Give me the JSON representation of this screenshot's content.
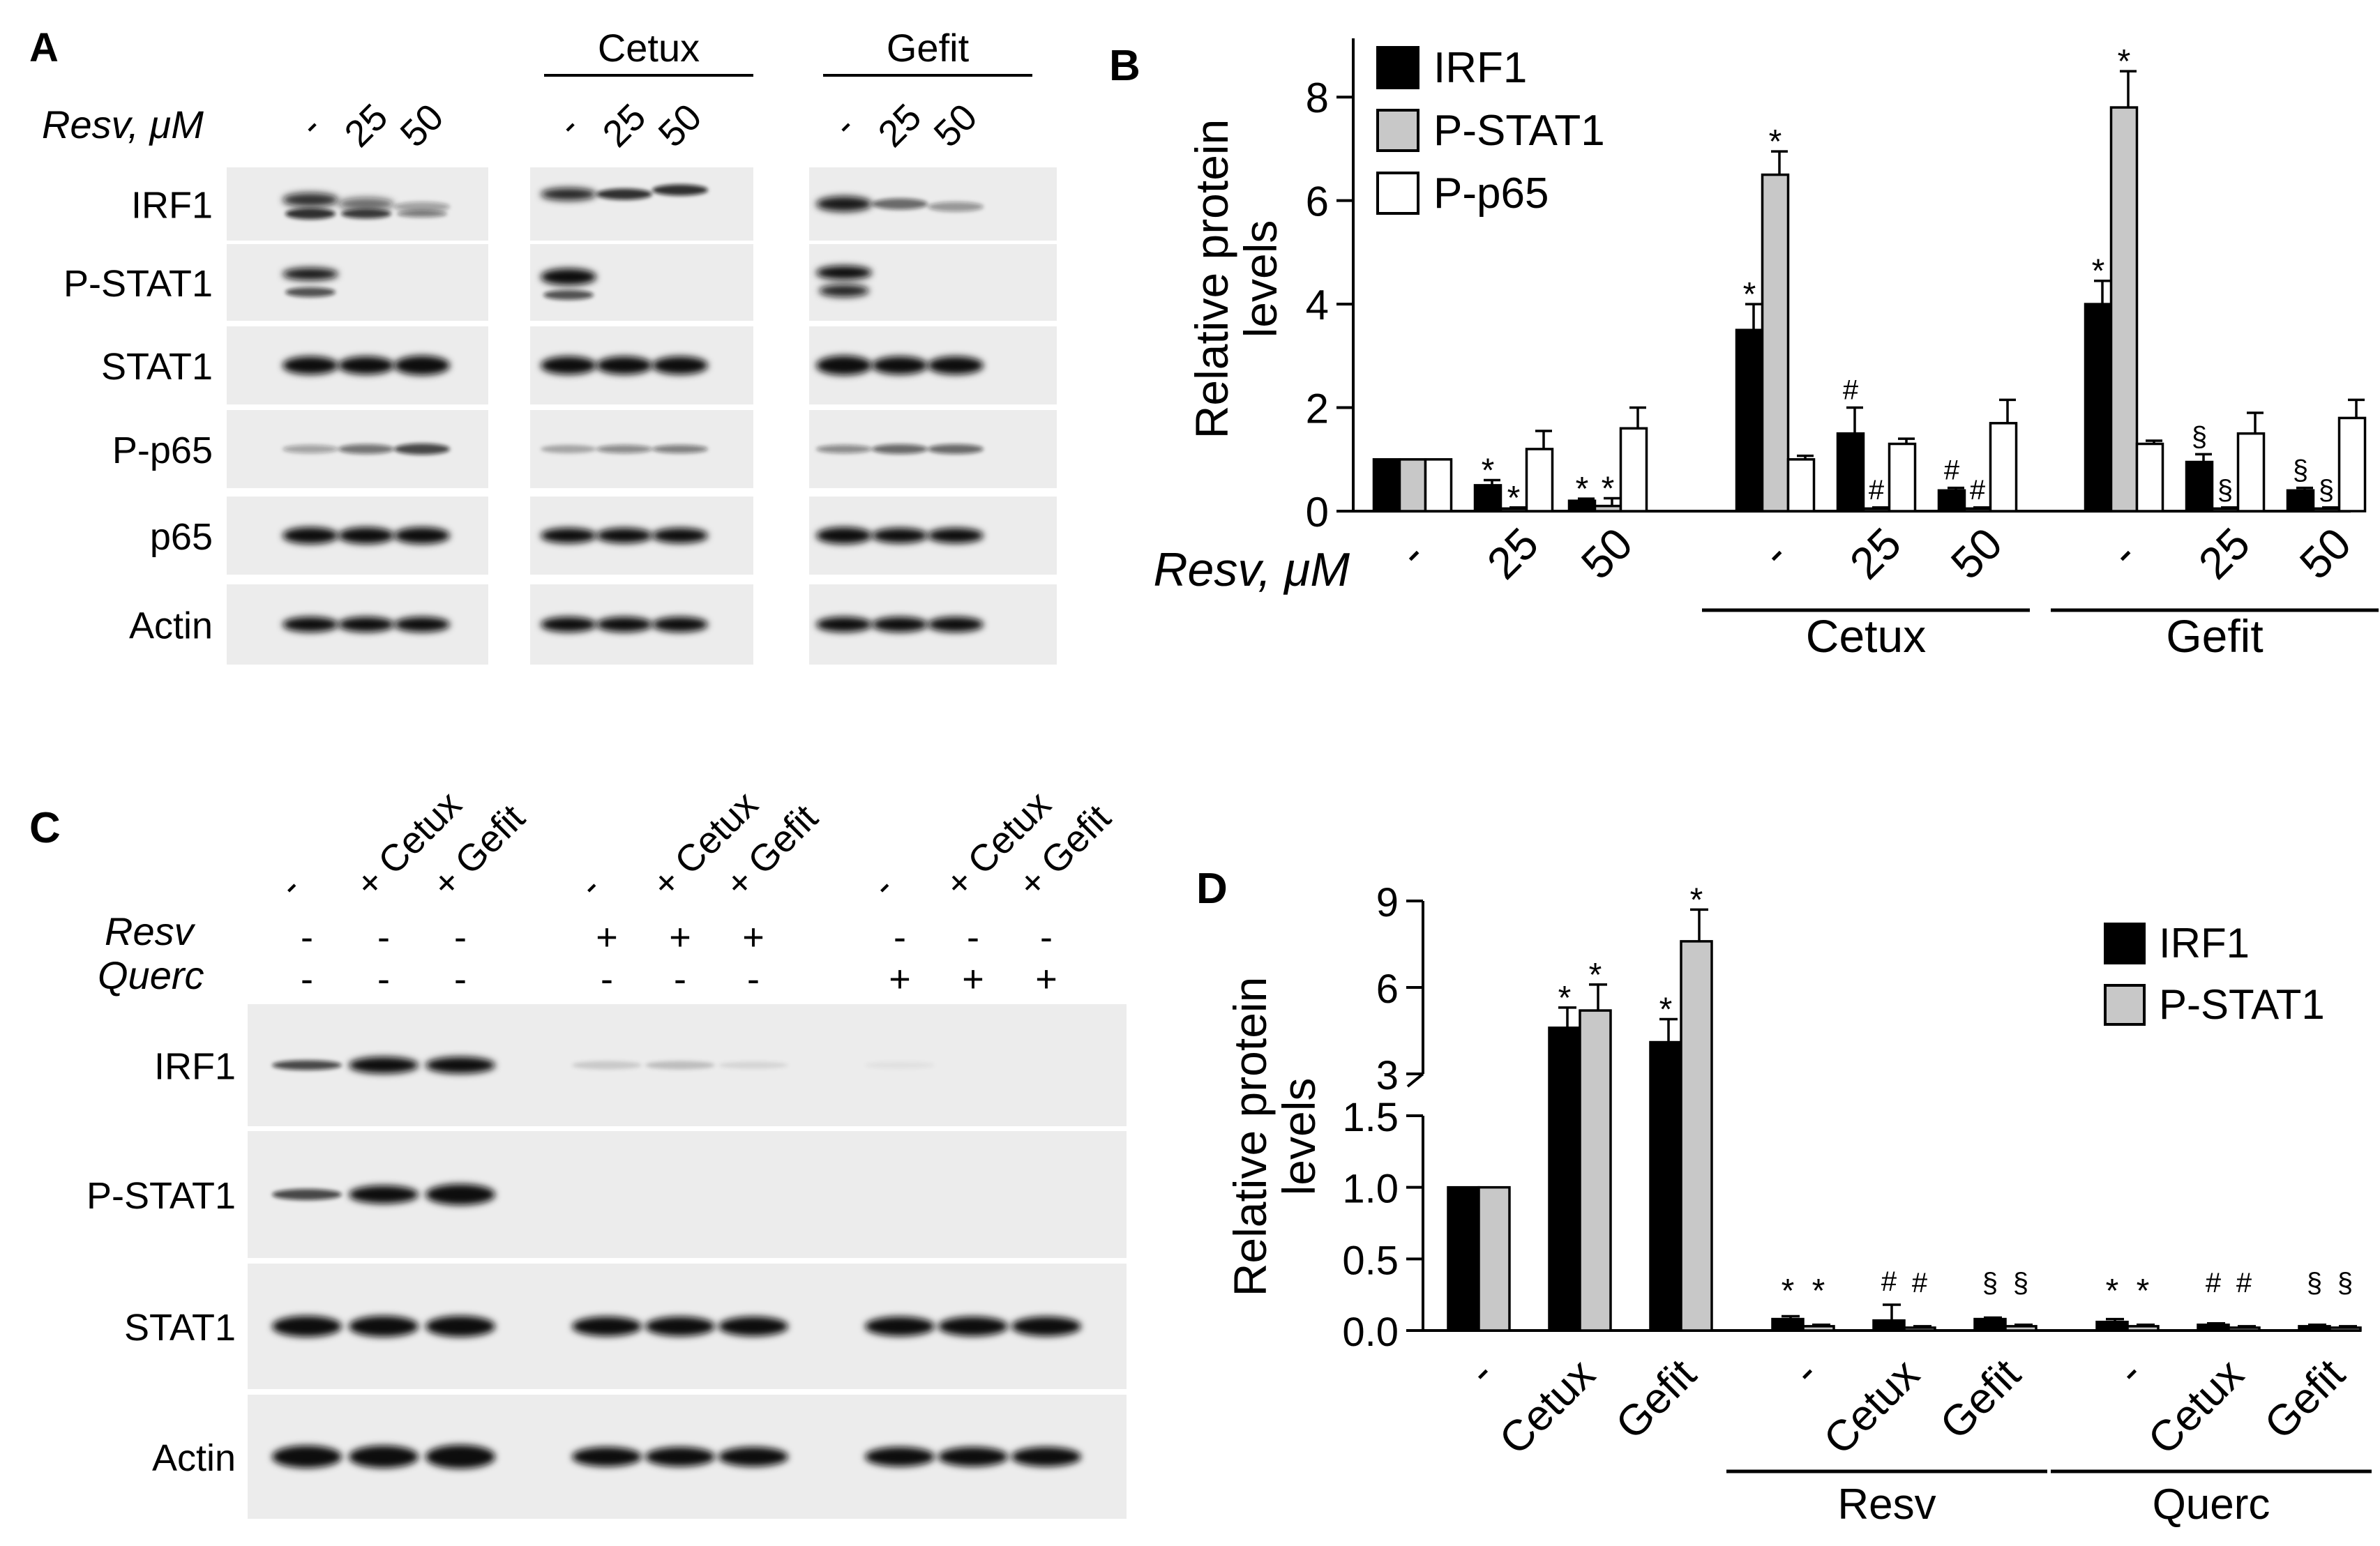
{
  "panels": {
    "a": {
      "letter": "A",
      "resv_label": "Resv, μM",
      "lane_labels": [
        "-",
        "25",
        "50",
        "-",
        "25",
        "50",
        "-",
        "25",
        "50"
      ],
      "group_labels": [
        "Cetux",
        "Gefit"
      ],
      "row_labels": [
        "IRF1",
        "P-STAT1",
        "STAT1",
        "P-p65",
        "p65",
        "Actin"
      ]
    },
    "b": {
      "letter": "B"
    },
    "c": {
      "letter": "C",
      "top_labels": [
        "-",
        "+ Cetux",
        "+ Gefit",
        "-",
        "+ Cetux",
        "+ Gefit",
        "-",
        "+ Cetux",
        "+ Gefit"
      ],
      "resv_label": "Resv",
      "resv_signs": [
        "-",
        "-",
        "-",
        "+",
        "+",
        "+",
        "-",
        "-",
        "-"
      ],
      "querc_label": "Querc",
      "querc_signs": [
        "-",
        "-",
        "-",
        "-",
        "-",
        "-",
        "+",
        "+",
        "+"
      ],
      "row_labels": [
        "IRF1",
        "P-STAT1",
        "STAT1",
        "Actin"
      ]
    },
    "d": {
      "letter": "D"
    }
  },
  "chart_data": [
    {
      "type": "bar",
      "panel": "B",
      "ylabel": "Relative protein levels",
      "xlabel": "Resv, μM",
      "categories": [
        "-",
        "25",
        "50",
        "-",
        "25",
        "50",
        "-",
        "25",
        "50"
      ],
      "groups": [
        {
          "label": "Cetux",
          "from": 3,
          "to": 5
        },
        {
          "label": "Gefit",
          "from": 6,
          "to": 8
        }
      ],
      "ylim": [
        0,
        9
      ],
      "yticks": [
        0,
        2,
        4,
        6,
        8
      ],
      "legend_position": "top-left",
      "series": [
        {
          "name": "IRF1",
          "color": "#000000",
          "values": [
            1.0,
            0.5,
            0.2,
            3.5,
            1.5,
            0.4,
            4.0,
            0.95,
            0.4
          ],
          "errors": [
            0,
            0.1,
            0.04,
            0.5,
            0.5,
            0.05,
            0.45,
            0.15,
            0.05
          ],
          "marks": [
            "",
            "*",
            "*",
            "*",
            "#",
            "#",
            "*",
            "§",
            "§"
          ]
        },
        {
          "name": "P-STAT1",
          "color": "#c8c8c8",
          "values": [
            1.0,
            0.05,
            0.1,
            6.5,
            0.05,
            0.05,
            7.8,
            0.05,
            0.05
          ],
          "errors": [
            0,
            0.02,
            0.15,
            0.45,
            0.02,
            0.02,
            0.7,
            0.02,
            0.02
          ],
          "marks": [
            "",
            "*",
            "*",
            "*",
            "#",
            "#",
            "*",
            "§",
            "§"
          ]
        },
        {
          "name": "P-p65",
          "color": "#ffffff",
          "values": [
            1.0,
            1.2,
            1.6,
            1.0,
            1.3,
            1.7,
            1.3,
            1.5,
            1.8
          ],
          "errors": [
            0,
            0.35,
            0.4,
            0.07,
            0.1,
            0.45,
            0.06,
            0.4,
            0.35
          ],
          "marks": [
            "",
            "",
            "",
            "",
            "",
            "",
            "",
            "",
            ""
          ]
        }
      ]
    },
    {
      "type": "bar",
      "panel": "D",
      "ylabel": "Relative protein levels",
      "categories": [
        "-",
        "Cetux",
        "Gefit",
        "-",
        "Cetux",
        "Gefit",
        "-",
        "Cetux",
        "Gefit"
      ],
      "groups": [
        {
          "label": "Resv",
          "from": 3,
          "to": 5
        },
        {
          "label": "Querc",
          "from": 6,
          "to": 8
        }
      ],
      "axis_break": true,
      "ylim_lower": [
        0,
        1.5
      ],
      "ylim_upper": [
        3,
        9
      ],
      "yticks_lower": [
        "0.0",
        "0.5",
        "1.0",
        "1.5"
      ],
      "yticks_upper": [
        "3",
        "6",
        "9"
      ],
      "legend_position": "top-right",
      "series": [
        {
          "name": "IRF1",
          "color": "#000000",
          "values": [
            1.0,
            4.6,
            4.1,
            0.08,
            0.07,
            0.08,
            0.06,
            0.04,
            0.03
          ],
          "errors": [
            0,
            0.7,
            0.8,
            0.02,
            0.11,
            0.01,
            0.02,
            0.01,
            0.01
          ],
          "marks": [
            "",
            "*",
            "*",
            "*",
            "#",
            "§",
            "*",
            "#",
            "§"
          ]
        },
        {
          "name": "P-STAT1",
          "color": "#c8c8c8",
          "values": [
            1.0,
            5.2,
            7.6,
            0.03,
            0.02,
            0.03,
            0.03,
            0.02,
            0.02
          ],
          "errors": [
            0,
            0.9,
            1.1,
            0.01,
            0.01,
            0.01,
            0.01,
            0.01,
            0.01
          ],
          "marks": [
            "",
            "*",
            "*",
            "*",
            "#",
            "§",
            "*",
            "#",
            "§"
          ]
        }
      ]
    }
  ]
}
